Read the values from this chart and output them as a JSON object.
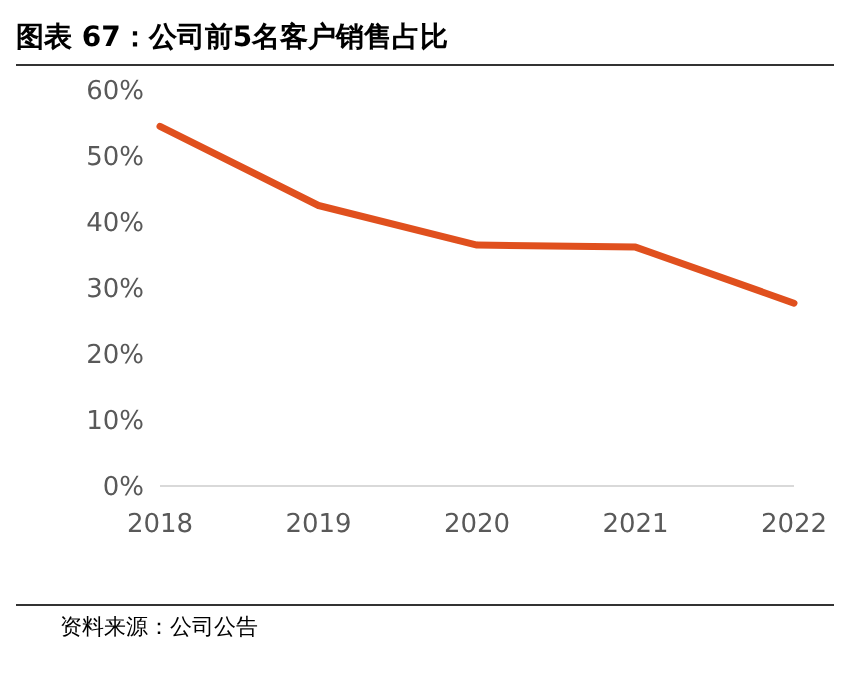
{
  "chart_data": {
    "type": "line",
    "title": "图表 67：公司前5名客户销售占比",
    "categories": [
      "2018",
      "2019",
      "2020",
      "2021",
      "2022"
    ],
    "series": [
      {
        "color": "#e0501e",
        "values": [
          54.5,
          42.5,
          36.5,
          36.2,
          27.7
        ]
      }
    ],
    "ylim": [
      0,
      60
    ],
    "yticks": [
      {
        "value": 0,
        "label": "0%"
      },
      {
        "value": 10,
        "label": "10%"
      },
      {
        "value": 20,
        "label": "20%"
      },
      {
        "value": 30,
        "label": "30%"
      },
      {
        "value": 40,
        "label": "40%"
      },
      {
        "value": 50,
        "label": "50%"
      },
      {
        "value": 60,
        "label": "60%"
      }
    ],
    "grid": false,
    "legend": false,
    "marker": "none",
    "line_style": "solid",
    "annotations": [
      "资料来源：公司公告"
    ]
  }
}
